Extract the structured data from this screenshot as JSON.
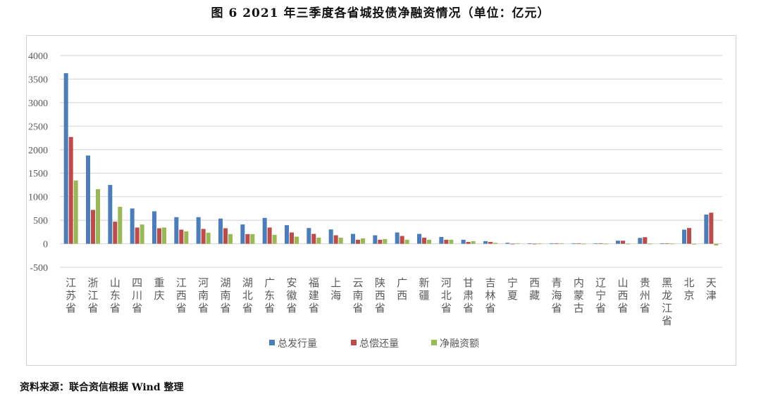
{
  "title": "图 6   2021 年三季度各省城投债净融资情况（单位：亿元）",
  "source": "资料来源：联合资信根据 Wind 整理",
  "chart_data": {
    "type": "bar",
    "title": "",
    "xlabel": "",
    "ylabel": "",
    "ylim": [
      -500,
      4000
    ],
    "yticks": [
      -500,
      0,
      500,
      1000,
      1500,
      2000,
      2500,
      3000,
      3500,
      4000
    ],
    "grid": true,
    "legend_position": "bottom",
    "categories": [
      "江苏省",
      "浙江省",
      "山东省",
      "四川省",
      "重庆",
      "江西省",
      "河南省",
      "湖南省",
      "湖北省",
      "广东省",
      "安徽省",
      "福建省",
      "上海",
      "云南省",
      "陕西省",
      "广西",
      "新疆",
      "河北省",
      "甘肃省",
      "吉林省",
      "宁夏",
      "西藏",
      "青海省",
      "内蒙古",
      "辽宁省",
      "山西省",
      "贵州省",
      "黑龙江省",
      "北京",
      "天津"
    ],
    "series": [
      {
        "name": "总发行量",
        "color": "#4a7ebb",
        "values": [
          3625,
          1875,
          1250,
          750,
          690,
          565,
          565,
          535,
          410,
          550,
          395,
          335,
          305,
          210,
          180,
          240,
          210,
          145,
          85,
          55,
          20,
          5,
          10,
          10,
          10,
          65,
          125,
          10,
          300,
          620
        ]
      },
      {
        "name": "总偿还量",
        "color": "#be4b48",
        "values": [
          2270,
          720,
          470,
          345,
          330,
          300,
          315,
          330,
          205,
          345,
          240,
          210,
          180,
          85,
          85,
          165,
          130,
          85,
          40,
          40,
          0,
          0,
          10,
          10,
          10,
          65,
          140,
          10,
          335,
          660
        ]
      },
      {
        "name": "净融资额",
        "color": "#98b954",
        "values": [
          1345,
          1160,
          785,
          410,
          345,
          265,
          235,
          205,
          205,
          190,
          150,
          130,
          130,
          115,
          100,
          85,
          85,
          85,
          55,
          20,
          10,
          5,
          10,
          0,
          0,
          0,
          0,
          0,
          -15,
          -35
        ]
      }
    ]
  }
}
